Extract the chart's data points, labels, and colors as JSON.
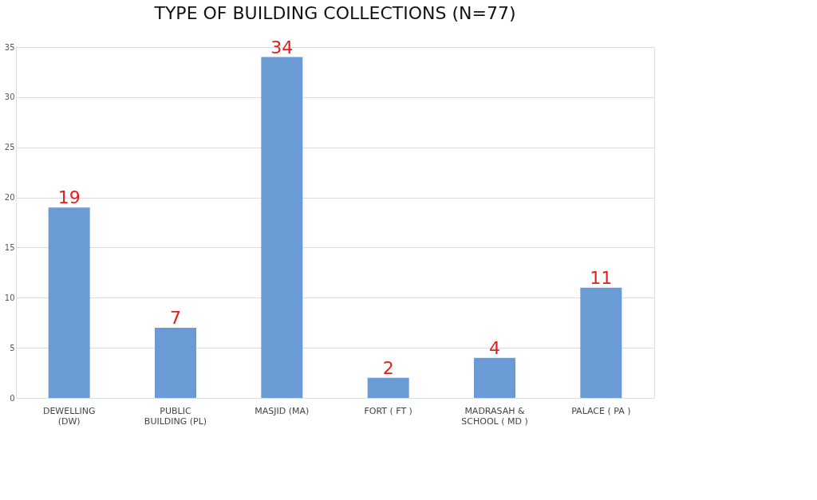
{
  "chart_data": {
    "type": "bar",
    "title": "TYPE OF BUILDING COLLECTIONS (N=77)",
    "categories": [
      "DEWELLING\n(DW)",
      "PUBLIC\nBUILDING (PL)",
      "MASJID (MA)",
      "FORT ( FT )",
      "MADRASAH &\nSCHOOL ( MD )",
      "PALACE ( PA )"
    ],
    "values": [
      19,
      7,
      34,
      2,
      4,
      11
    ],
    "color": "#6a9bd4",
    "ylim": [
      0,
      35
    ],
    "yticks": [
      0,
      5,
      10,
      15,
      20,
      25,
      30,
      35
    ],
    "grid": "y",
    "data_labels": true
  }
}
